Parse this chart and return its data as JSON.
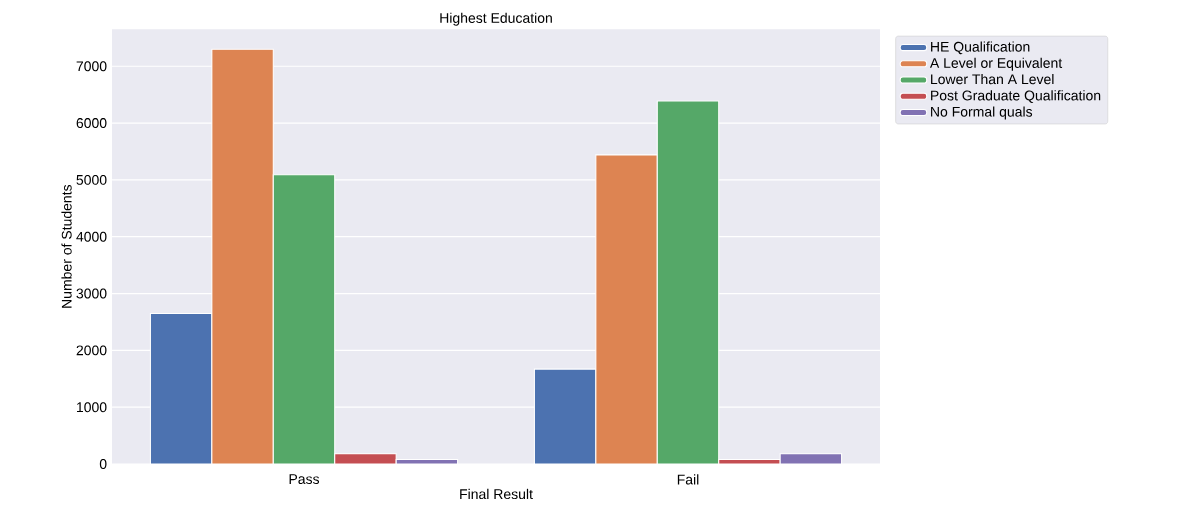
{
  "chart_data": {
    "type": "bar",
    "title": "Highest Education",
    "xlabel": "Final Result",
    "ylabel": "Number of Students",
    "categories": [
      "Pass",
      "Fail"
    ],
    "series": [
      {
        "name": "HE Qualification",
        "color": "#4c72b0",
        "values": [
          2650,
          1670
        ]
      },
      {
        "name": "A Level or Equivalent",
        "color": "#dd8452",
        "values": [
          7300,
          5440
        ]
      },
      {
        "name": "Lower Than A Level",
        "color": "#55a868",
        "values": [
          5090,
          6390
        ]
      },
      {
        "name": "Post Graduate Qualification",
        "color": "#c44e52",
        "values": [
          180,
          80
        ]
      },
      {
        "name": "No Formal quals",
        "color": "#8172b3",
        "values": [
          80,
          180
        ]
      }
    ],
    "ylim": [
      0,
      7650
    ],
    "yticks": [
      0,
      1000,
      2000,
      3000,
      4000,
      5000,
      6000,
      7000
    ],
    "grid": "y",
    "legend": "right"
  }
}
